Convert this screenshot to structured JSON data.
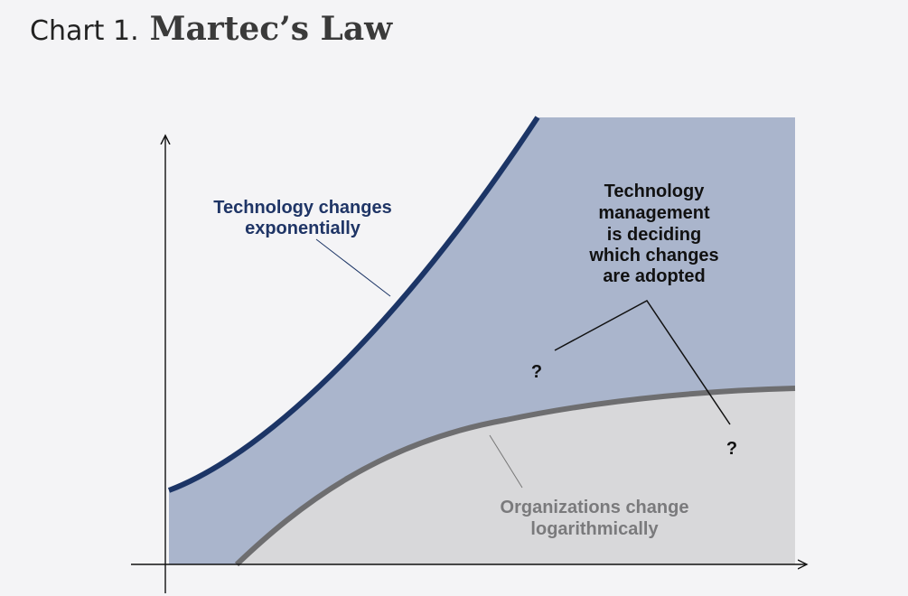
{
  "header": {
    "label": "Chart 1.",
    "title": "Martec’s Law"
  },
  "annotations": {
    "technology": [
      "Technology changes",
      "exponentially"
    ],
    "management": [
      "Technology",
      "management",
      "is deciding",
      "which changes",
      "are adopted"
    ],
    "questions": [
      "?",
      "?"
    ],
    "organizations": [
      "Organizations change",
      "logarithmically"
    ]
  }
}
